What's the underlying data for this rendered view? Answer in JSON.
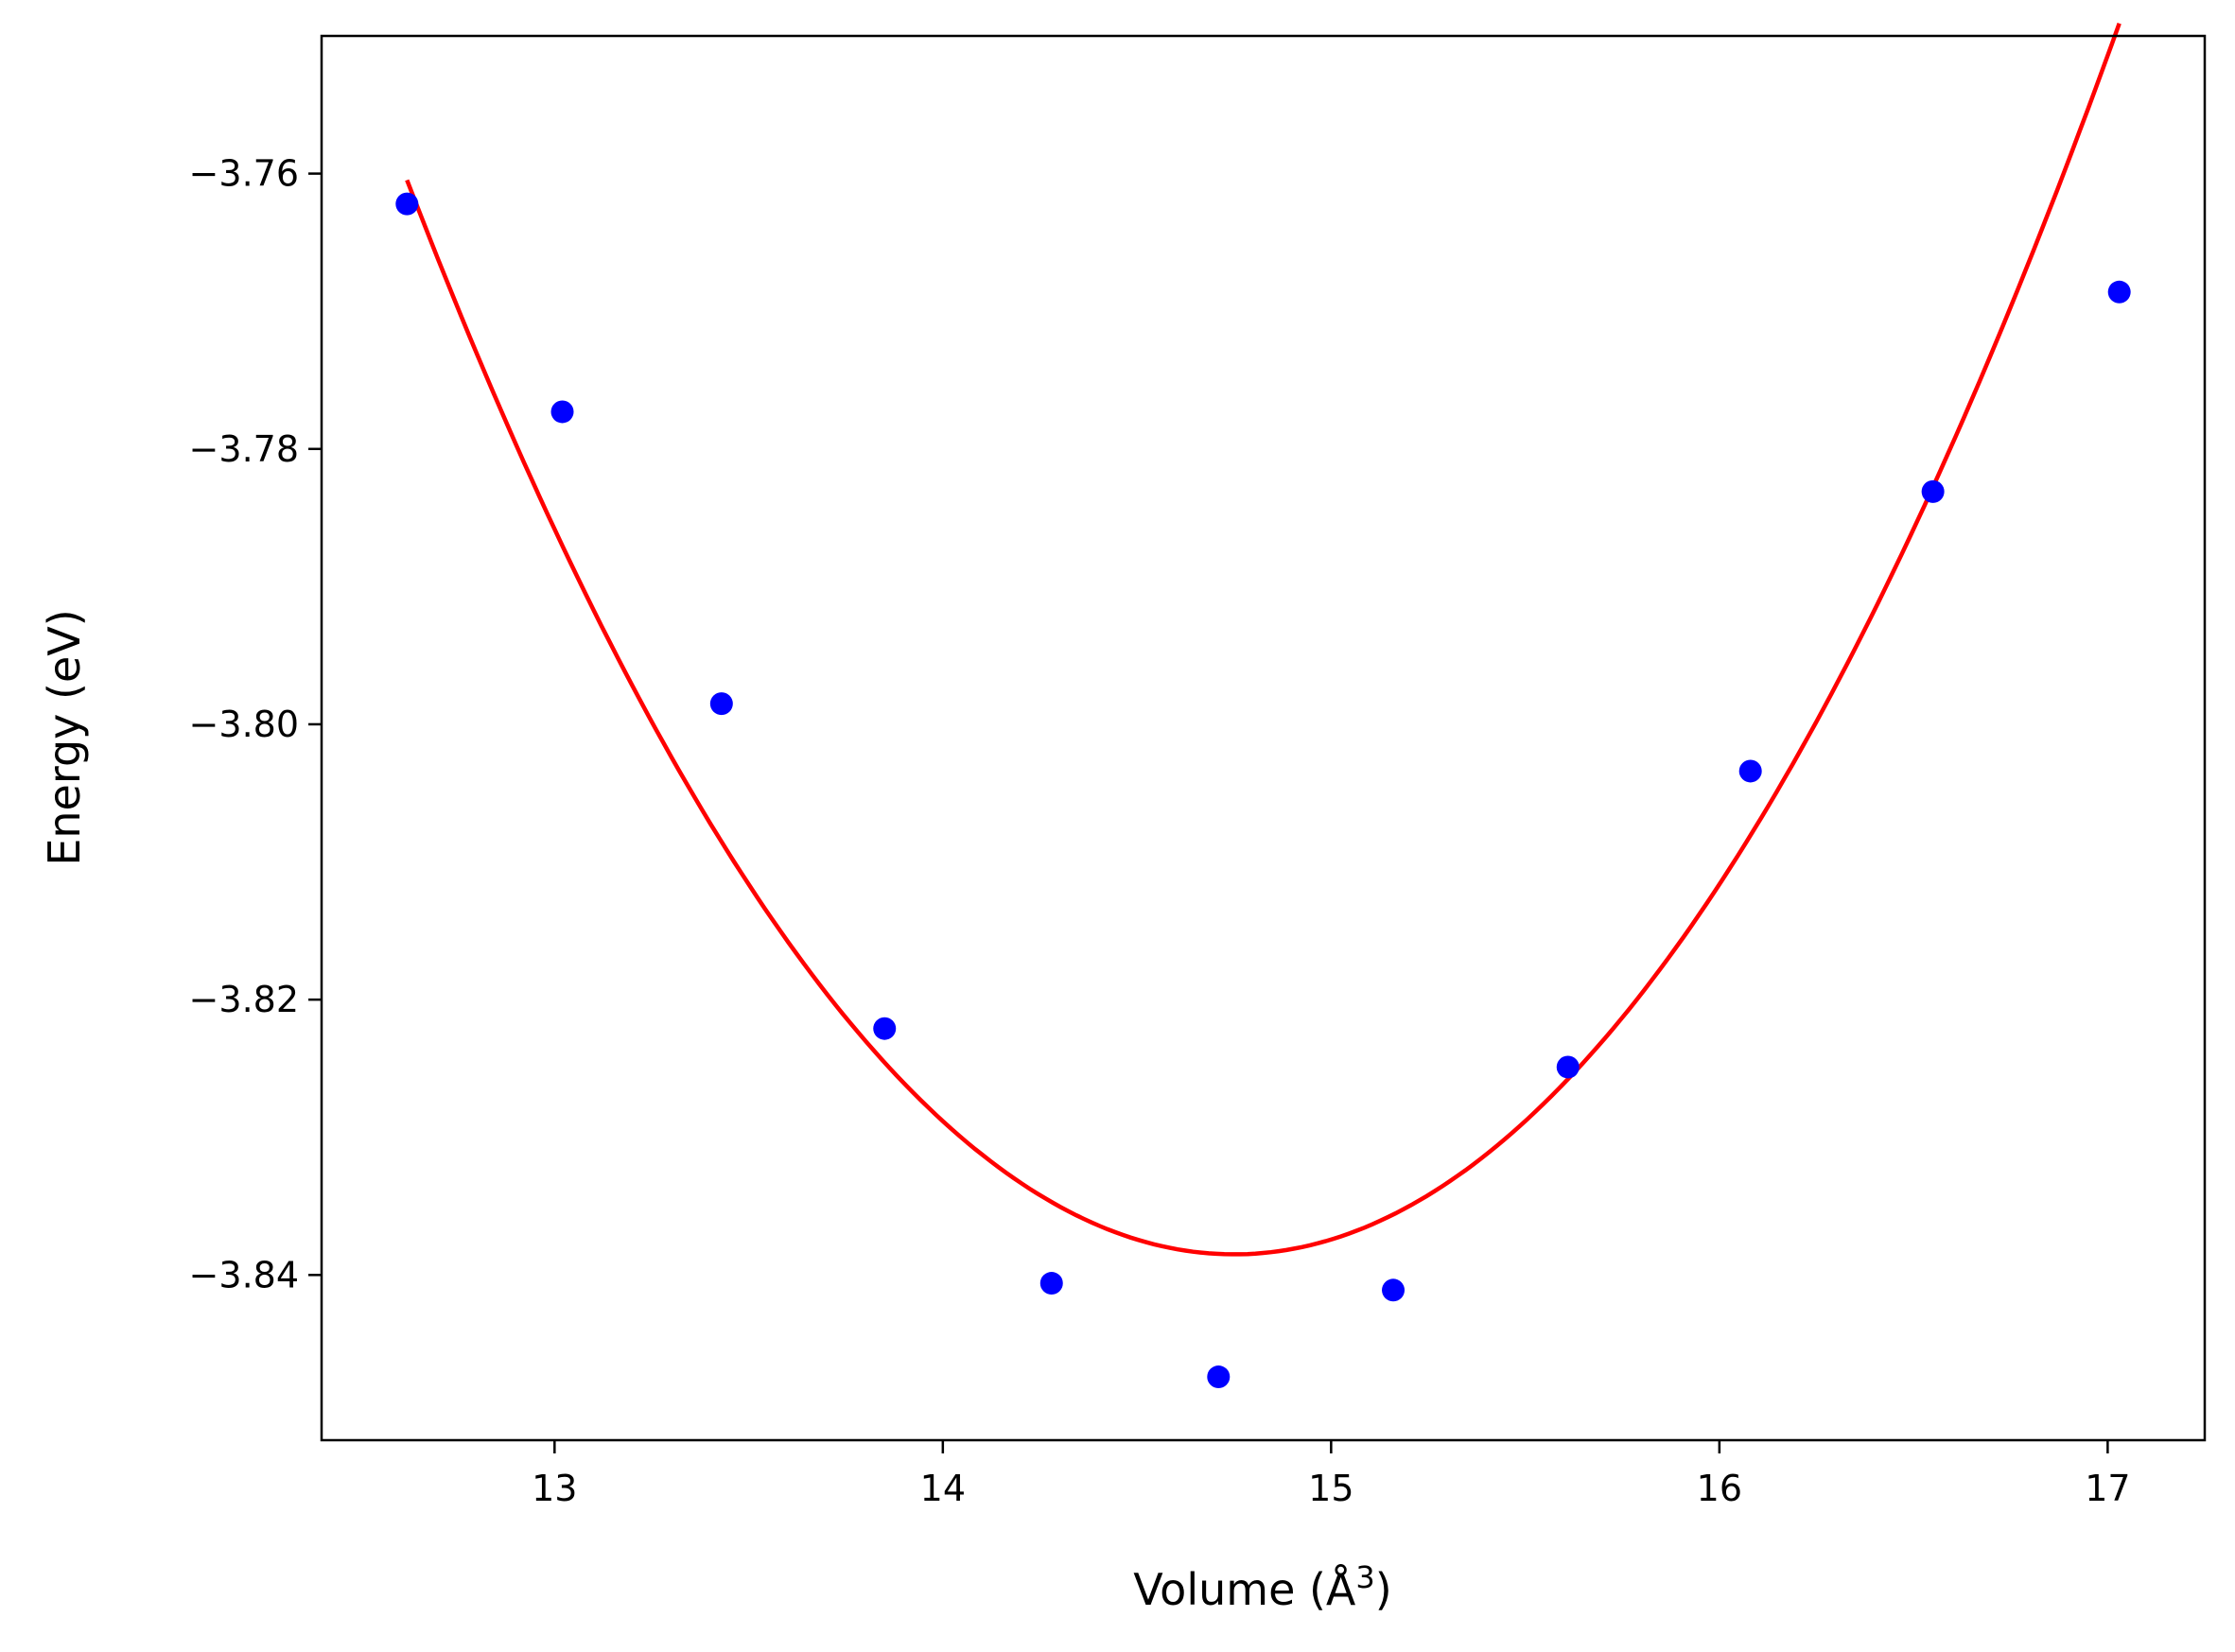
{
  "chart_data": {
    "type": "scatter",
    "title": "",
    "xlabel": "Volume (Å",
    "xlabel_sup": "3",
    "xlabel_close": ")",
    "ylabel": "Energy (eV)",
    "xlim": [
      12.4,
      17.25
    ],
    "ylim": [
      -3.852,
      -3.75
    ],
    "x_ticks": [
      13,
      14,
      15,
      16,
      17
    ],
    "x_tick_labels": [
      "13",
      "14",
      "15",
      "16",
      "17"
    ],
    "y_ticks": [
      -3.76,
      -3.78,
      -3.8,
      -3.82,
      -3.84
    ],
    "y_tick_labels": [
      "−3.76",
      "−3.78",
      "−3.80",
      "−3.82",
      "−3.84"
    ],
    "grid": false,
    "series": [
      {
        "kind": "points",
        "color": "#0000ff",
        "x": [
          12.62,
          13.02,
          13.43,
          13.85,
          14.28,
          14.71,
          15.16,
          15.61,
          16.08,
          16.55,
          17.03
        ],
        "y": [
          -3.7622,
          -3.7773,
          -3.7985,
          -3.8221,
          -3.8406,
          -3.8474,
          -3.8411,
          -3.8249,
          -3.8034,
          -3.7831,
          -3.7686
        ]
      },
      {
        "kind": "fit",
        "color": "#ff0000",
        "x_range": [
          12.62,
          17.03
        ],
        "vertex_x": 14.75,
        "vertex_y": -3.8385,
        "curvature": 0.0172
      }
    ]
  }
}
